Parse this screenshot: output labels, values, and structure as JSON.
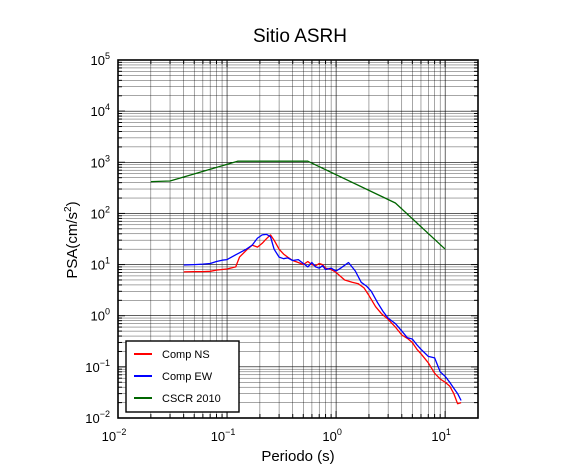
{
  "chart_data": {
    "type": "line",
    "title": "Sitio ASRH",
    "xlabel": "Periodo (s)",
    "ylabel": {
      "base": "PSA(cm/s",
      "sup": "2",
      "close": ")"
    },
    "x_scale": "log",
    "y_scale": "log",
    "xlim": [
      0.01,
      20
    ],
    "ylim": [
      0.01,
      100000
    ],
    "x_ticks": [
      {
        "base": "10",
        "exp": "−2",
        "value": 0.01
      },
      {
        "base": "10",
        "exp": "−1",
        "value": 0.1
      },
      {
        "base": "10",
        "exp": "0",
        "value": 1
      },
      {
        "base": "10",
        "exp": "1",
        "value": 10
      }
    ],
    "y_ticks": [
      {
        "base": "10",
        "exp": "−2",
        "value": 0.01
      },
      {
        "base": "10",
        "exp": "−1",
        "value": 0.1
      },
      {
        "base": "10",
        "exp": "0",
        "value": 1
      },
      {
        "base": "10",
        "exp": "1",
        "value": 10
      },
      {
        "base": "10",
        "exp": "2",
        "value": 100
      },
      {
        "base": "10",
        "exp": "3",
        "value": 1000
      },
      {
        "base": "10",
        "exp": "4",
        "value": 10000
      },
      {
        "base": "10",
        "exp": "5",
        "value": 100000
      }
    ],
    "grid": true,
    "legend_position": "bottom-left",
    "series": [
      {
        "name": "Comp NS",
        "color": "#ff0000",
        "points": [
          [
            0.04,
            7.2
          ],
          [
            0.05,
            7.3
          ],
          [
            0.06,
            7.3
          ],
          [
            0.07,
            7.4
          ],
          [
            0.08,
            7.8
          ],
          [
            0.09,
            8.0
          ],
          [
            0.1,
            8.2
          ],
          [
            0.11,
            8.6
          ],
          [
            0.12,
            9.0
          ],
          [
            0.13,
            14
          ],
          [
            0.15,
            19
          ],
          [
            0.17,
            24
          ],
          [
            0.19,
            22
          ],
          [
            0.21,
            26
          ],
          [
            0.23,
            32
          ],
          [
            0.25,
            38
          ],
          [
            0.27,
            30
          ],
          [
            0.3,
            20
          ],
          [
            0.33,
            16
          ],
          [
            0.36,
            14
          ],
          [
            0.4,
            12
          ],
          [
            0.45,
            11
          ],
          [
            0.5,
            10
          ],
          [
            0.55,
            11.5
          ],
          [
            0.6,
            10
          ],
          [
            0.65,
            9.5
          ],
          [
            0.7,
            10.5
          ],
          [
            0.75,
            10
          ],
          [
            0.8,
            8.5
          ],
          [
            0.9,
            8
          ],
          [
            1.0,
            7
          ],
          [
            1.2,
            5
          ],
          [
            1.4,
            4.5
          ],
          [
            1.6,
            4.2
          ],
          [
            1.8,
            3.5
          ],
          [
            2.0,
            2.5
          ],
          [
            2.3,
            1.5
          ],
          [
            2.6,
            1.1
          ],
          [
            3.0,
            0.85
          ],
          [
            3.5,
            0.6
          ],
          [
            4.0,
            0.42
          ],
          [
            4.5,
            0.36
          ],
          [
            5.0,
            0.3
          ],
          [
            5.5,
            0.22
          ],
          [
            6.0,
            0.18
          ],
          [
            7.0,
            0.12
          ],
          [
            8.0,
            0.075
          ],
          [
            9.0,
            0.058
          ],
          [
            10.0,
            0.05
          ],
          [
            11.0,
            0.042
          ],
          [
            12.0,
            0.03
          ],
          [
            13.0,
            0.019
          ],
          [
            14.0,
            0.02
          ]
        ]
      },
      {
        "name": "Comp EW",
        "color": "#0000ff",
        "points": [
          [
            0.04,
            9.8
          ],
          [
            0.05,
            10
          ],
          [
            0.06,
            10.2
          ],
          [
            0.07,
            10.5
          ],
          [
            0.08,
            11.5
          ],
          [
            0.09,
            12.2
          ],
          [
            0.1,
            12.5
          ],
          [
            0.11,
            14
          ],
          [
            0.12,
            15.5
          ],
          [
            0.13,
            17
          ],
          [
            0.15,
            20
          ],
          [
            0.17,
            24
          ],
          [
            0.19,
            33
          ],
          [
            0.21,
            38
          ],
          [
            0.23,
            39
          ],
          [
            0.25,
            35
          ],
          [
            0.27,
            20
          ],
          [
            0.3,
            14
          ],
          [
            0.33,
            13
          ],
          [
            0.36,
            13.5
          ],
          [
            0.4,
            12
          ],
          [
            0.45,
            12.5
          ],
          [
            0.5,
            10.5
          ],
          [
            0.55,
            9
          ],
          [
            0.6,
            11
          ],
          [
            0.65,
            9
          ],
          [
            0.7,
            8.5
          ],
          [
            0.75,
            9.5
          ],
          [
            0.8,
            8
          ],
          [
            0.9,
            8.5
          ],
          [
            1.0,
            7.5
          ],
          [
            1.1,
            8.5
          ],
          [
            1.3,
            11
          ],
          [
            1.5,
            7.5
          ],
          [
            1.7,
            4.5
          ],
          [
            1.9,
            3.8
          ],
          [
            2.1,
            3.0
          ],
          [
            2.4,
            1.8
          ],
          [
            2.7,
            1.2
          ],
          [
            3.0,
            0.9
          ],
          [
            3.5,
            0.7
          ],
          [
            4.0,
            0.5
          ],
          [
            4.5,
            0.37
          ],
          [
            5.0,
            0.35
          ],
          [
            5.5,
            0.27
          ],
          [
            6.0,
            0.22
          ],
          [
            7.0,
            0.16
          ],
          [
            8.0,
            0.15
          ],
          [
            9.0,
            0.08
          ],
          [
            10.0,
            0.065
          ],
          [
            11.0,
            0.05
          ],
          [
            12.0,
            0.038
          ],
          [
            13.0,
            0.03
          ],
          [
            14.0,
            0.022
          ]
        ]
      },
      {
        "name": "CSCR 2010",
        "color": "#006600",
        "points": [
          [
            0.02,
            420
          ],
          [
            0.03,
            430
          ],
          [
            0.125,
            1050
          ],
          [
            0.55,
            1050
          ],
          [
            3.5,
            160
          ],
          [
            10.0,
            20
          ]
        ]
      }
    ]
  }
}
